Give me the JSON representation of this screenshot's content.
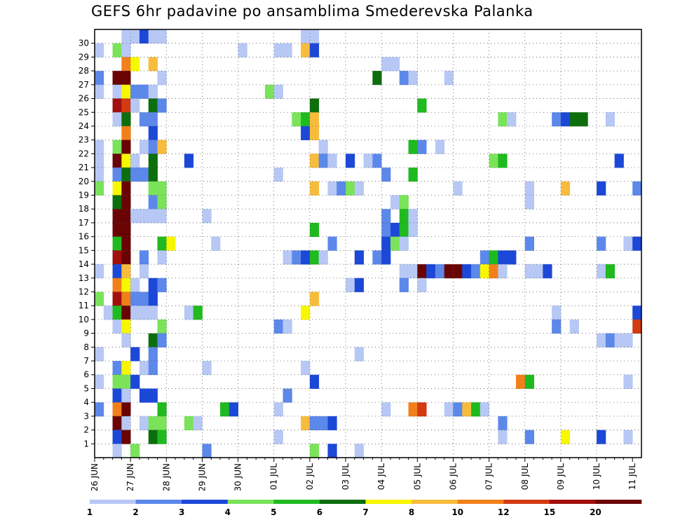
{
  "title": "GEFS 6hr padavine po ansamblima Smederevska Palanka",
  "chart_data": {
    "type": "heatmap",
    "title": "GEFS 6hr padavine po ansamblima Smederevska Palanka",
    "xlabel": "",
    "ylabel": "",
    "x_tick_labels": [
      "26 JUN",
      "27 JUN",
      "28 JUN",
      "29 JUN",
      "30 JUN",
      "01 JUL",
      "02 JUL",
      "03 JUL",
      "04 JUL",
      "05 JUL",
      "06 JUL",
      "07 JUL",
      "08 JUL",
      "09 JUL",
      "10 JUL",
      "11 JUL"
    ],
    "y_tick_labels": [
      "1",
      "2",
      "3",
      "4",
      "5",
      "6",
      "7",
      "8",
      "9",
      "10",
      "11",
      "12",
      "13",
      "14",
      "15",
      "16",
      "17",
      "18",
      "19",
      "20",
      "21",
      "22",
      "23",
      "24",
      "25",
      "26",
      "27",
      "28",
      "29",
      "30"
    ],
    "x_steps_per_day": 4,
    "x_steps_total": 61,
    "grid": true,
    "legend_placement": "bottom",
    "colorbar": {
      "labels": [
        "1",
        "2",
        "3",
        "4",
        "5",
        "6",
        "7",
        "8",
        "10",
        "12",
        "15",
        "20"
      ],
      "colors": [
        "#b7c8f5",
        "#5c88ea",
        "#1c48d8",
        "#7ae35a",
        "#1fba1f",
        "#0d6e0d",
        "#f7f700",
        "#f7bc3c",
        "#f2801a",
        "#d23a12",
        "#a10f0f",
        "#6a0404"
      ]
    },
    "cells": [
      [
        30,
        3,
        1
      ],
      [
        30,
        4,
        1
      ],
      [
        30,
        5,
        3
      ],
      [
        30,
        6,
        1
      ],
      [
        30,
        7,
        1
      ],
      [
        30,
        23,
        1
      ],
      [
        30,
        24,
        1
      ],
      [
        29,
        0,
        1
      ],
      [
        29,
        2,
        4
      ],
      [
        29,
        3,
        1
      ],
      [
        29,
        16,
        1
      ],
      [
        29,
        20,
        1
      ],
      [
        29,
        21,
        1
      ],
      [
        29,
        23,
        8
      ],
      [
        29,
        24,
        3
      ],
      [
        28,
        3,
        9
      ],
      [
        28,
        4,
        7
      ],
      [
        28,
        6,
        8
      ],
      [
        28,
        32,
        1
      ],
      [
        28,
        33,
        1
      ],
      [
        27,
        0,
        2
      ],
      [
        27,
        2,
        12
      ],
      [
        27,
        3,
        12
      ],
      [
        27,
        7,
        1
      ],
      [
        27,
        31,
        6
      ],
      [
        27,
        34,
        2
      ],
      [
        27,
        35,
        1
      ],
      [
        27,
        39,
        1
      ],
      [
        26,
        0,
        1
      ],
      [
        26,
        2,
        1
      ],
      [
        26,
        3,
        7
      ],
      [
        26,
        4,
        2
      ],
      [
        26,
        5,
        2
      ],
      [
        26,
        6,
        1
      ],
      [
        26,
        19,
        4
      ],
      [
        26,
        20,
        1
      ],
      [
        25,
        2,
        11
      ],
      [
        25,
        3,
        10
      ],
      [
        25,
        4,
        1
      ],
      [
        25,
        6,
        6
      ],
      [
        25,
        7,
        2
      ],
      [
        25,
        24,
        6
      ],
      [
        25,
        36,
        5
      ],
      [
        24,
        2,
        1
      ],
      [
        24,
        3,
        6
      ],
      [
        24,
        5,
        2
      ],
      [
        24,
        6,
        2
      ],
      [
        24,
        22,
        4
      ],
      [
        24,
        23,
        5
      ],
      [
        24,
        24,
        8
      ],
      [
        24,
        45,
        4
      ],
      [
        24,
        46,
        1
      ],
      [
        24,
        51,
        2
      ],
      [
        24,
        52,
        3
      ],
      [
        24,
        53,
        6
      ],
      [
        24,
        54,
        6
      ],
      [
        24,
        57,
        1
      ],
      [
        23,
        3,
        9
      ],
      [
        23,
        6,
        3
      ],
      [
        23,
        23,
        3
      ],
      [
        23,
        24,
        8
      ],
      [
        22,
        0,
        1
      ],
      [
        22,
        2,
        4
      ],
      [
        22,
        3,
        12
      ],
      [
        22,
        5,
        1
      ],
      [
        22,
        6,
        2
      ],
      [
        22,
        7,
        8
      ],
      [
        22,
        25,
        1
      ],
      [
        22,
        35,
        5
      ],
      [
        22,
        36,
        2
      ],
      [
        22,
        38,
        1
      ],
      [
        21,
        0,
        1
      ],
      [
        21,
        2,
        12
      ],
      [
        21,
        3,
        7
      ],
      [
        21,
        4,
        1
      ],
      [
        21,
        6,
        6
      ],
      [
        21,
        10,
        3
      ],
      [
        21,
        24,
        8
      ],
      [
        21,
        25,
        2
      ],
      [
        21,
        26,
        1
      ],
      [
        21,
        28,
        3
      ],
      [
        21,
        30,
        1
      ],
      [
        21,
        31,
        2
      ],
      [
        21,
        44,
        4
      ],
      [
        21,
        45,
        5
      ],
      [
        21,
        58,
        3
      ],
      [
        20,
        0,
        1
      ],
      [
        20,
        2,
        2
      ],
      [
        20,
        3,
        6
      ],
      [
        20,
        4,
        2
      ],
      [
        20,
        5,
        2
      ],
      [
        20,
        6,
        6
      ],
      [
        20,
        20,
        1
      ],
      [
        20,
        32,
        2
      ],
      [
        20,
        35,
        5
      ],
      [
        19,
        0,
        4
      ],
      [
        19,
        2,
        7
      ],
      [
        19,
        3,
        12
      ],
      [
        19,
        6,
        4
      ],
      [
        19,
        7,
        4
      ],
      [
        19,
        24,
        8
      ],
      [
        19,
        26,
        1
      ],
      [
        19,
        27,
        2
      ],
      [
        19,
        28,
        4
      ],
      [
        19,
        29,
        1
      ],
      [
        19,
        40,
        1
      ],
      [
        19,
        48,
        1
      ],
      [
        19,
        52,
        8
      ],
      [
        19,
        56,
        3
      ],
      [
        19,
        60,
        2
      ],
      [
        18,
        2,
        6
      ],
      [
        18,
        3,
        12
      ],
      [
        18,
        6,
        2
      ],
      [
        18,
        7,
        4
      ],
      [
        18,
        33,
        1
      ],
      [
        18,
        34,
        4
      ],
      [
        18,
        48,
        1
      ],
      [
        17,
        2,
        12
      ],
      [
        17,
        3,
        12
      ],
      [
        17,
        4,
        1
      ],
      [
        17,
        5,
        1
      ],
      [
        17,
        6,
        1
      ],
      [
        17,
        7,
        1
      ],
      [
        17,
        12,
        1
      ],
      [
        17,
        32,
        2
      ],
      [
        17,
        34,
        5
      ],
      [
        17,
        35,
        1
      ],
      [
        16,
        2,
        12
      ],
      [
        16,
        3,
        12
      ],
      [
        16,
        24,
        5
      ],
      [
        16,
        32,
        2
      ],
      [
        16,
        33,
        3
      ],
      [
        16,
        34,
        5
      ],
      [
        16,
        35,
        1
      ],
      [
        15,
        2,
        5
      ],
      [
        15,
        3,
        12
      ],
      [
        15,
        7,
        5
      ],
      [
        15,
        8,
        7
      ],
      [
        15,
        13,
        1
      ],
      [
        15,
        26,
        2
      ],
      [
        15,
        32,
        3
      ],
      [
        15,
        33,
        4
      ],
      [
        15,
        34,
        1
      ],
      [
        15,
        48,
        2
      ],
      [
        15,
        56,
        2
      ],
      [
        15,
        59,
        1
      ],
      [
        15,
        60,
        3
      ],
      [
        14,
        2,
        11
      ],
      [
        14,
        3,
        12
      ],
      [
        14,
        5,
        2
      ],
      [
        14,
        7,
        1
      ],
      [
        14,
        21,
        1
      ],
      [
        14,
        22,
        2
      ],
      [
        14,
        23,
        3
      ],
      [
        14,
        24,
        5
      ],
      [
        14,
        25,
        1
      ],
      [
        14,
        29,
        3
      ],
      [
        14,
        31,
        2
      ],
      [
        14,
        32,
        3
      ],
      [
        14,
        43,
        2
      ],
      [
        14,
        44,
        5
      ],
      [
        14,
        45,
        3
      ],
      [
        14,
        46,
        3
      ],
      [
        13,
        0,
        1
      ],
      [
        13,
        2,
        3
      ],
      [
        13,
        3,
        8
      ],
      [
        13,
        5,
        1
      ],
      [
        13,
        34,
        1
      ],
      [
        13,
        35,
        1
      ],
      [
        13,
        36,
        12
      ],
      [
        13,
        37,
        3
      ],
      [
        13,
        38,
        2
      ],
      [
        13,
        39,
        12
      ],
      [
        13,
        40,
        12
      ],
      [
        13,
        41,
        3
      ],
      [
        13,
        42,
        2
      ],
      [
        13,
        43,
        7
      ],
      [
        13,
        44,
        9
      ],
      [
        13,
        45,
        1
      ],
      [
        13,
        48,
        1
      ],
      [
        13,
        49,
        1
      ],
      [
        13,
        50,
        3
      ],
      [
        13,
        56,
        1
      ],
      [
        13,
        57,
        5
      ],
      [
        12,
        2,
        9
      ],
      [
        12,
        3,
        7
      ],
      [
        12,
        4,
        1
      ],
      [
        12,
        6,
        3
      ],
      [
        12,
        7,
        2
      ],
      [
        12,
        28,
        1
      ],
      [
        12,
        29,
        3
      ],
      [
        12,
        34,
        2
      ],
      [
        12,
        36,
        1
      ],
      [
        11,
        0,
        4
      ],
      [
        11,
        2,
        11
      ],
      [
        11,
        3,
        9
      ],
      [
        11,
        4,
        2
      ],
      [
        11,
        5,
        2
      ],
      [
        11,
        6,
        3
      ],
      [
        11,
        24,
        8
      ],
      [
        10,
        1,
        1
      ],
      [
        10,
        2,
        5
      ],
      [
        10,
        3,
        12
      ],
      [
        10,
        4,
        1
      ],
      [
        10,
        5,
        1
      ],
      [
        10,
        6,
        1
      ],
      [
        10,
        10,
        1
      ],
      [
        10,
        11,
        5
      ],
      [
        10,
        23,
        7
      ],
      [
        10,
        51,
        1
      ],
      [
        10,
        60,
        3
      ],
      [
        9,
        2,
        1
      ],
      [
        9,
        3,
        7
      ],
      [
        9,
        7,
        4
      ],
      [
        9,
        20,
        2
      ],
      [
        9,
        21,
        1
      ],
      [
        9,
        51,
        2
      ],
      [
        9,
        53,
        1
      ],
      [
        9,
        60,
        10
      ],
      [
        8,
        3,
        1
      ],
      [
        8,
        6,
        6
      ],
      [
        8,
        7,
        2
      ],
      [
        8,
        56,
        1
      ],
      [
        8,
        57,
        2
      ],
      [
        8,
        58,
        1
      ],
      [
        8,
        59,
        1
      ],
      [
        7,
        0,
        1
      ],
      [
        7,
        4,
        3
      ],
      [
        7,
        6,
        2
      ],
      [
        7,
        29,
        1
      ],
      [
        6,
        2,
        2
      ],
      [
        6,
        3,
        7
      ],
      [
        6,
        5,
        1
      ],
      [
        6,
        6,
        2
      ],
      [
        6,
        12,
        1
      ],
      [
        6,
        23,
        1
      ],
      [
        5,
        0,
        1
      ],
      [
        5,
        2,
        4
      ],
      [
        5,
        3,
        4
      ],
      [
        5,
        4,
        3
      ],
      [
        5,
        24,
        3
      ],
      [
        5,
        47,
        9
      ],
      [
        5,
        48,
        5
      ],
      [
        5,
        59,
        1
      ],
      [
        4,
        2,
        3
      ],
      [
        4,
        3,
        1
      ],
      [
        4,
        5,
        3
      ],
      [
        4,
        6,
        3
      ],
      [
        4,
        21,
        2
      ],
      [
        3,
        0,
        2
      ],
      [
        3,
        2,
        9
      ],
      [
        3,
        3,
        12
      ],
      [
        3,
        7,
        5
      ],
      [
        3,
        14,
        5
      ],
      [
        3,
        15,
        3
      ],
      [
        3,
        20,
        1
      ],
      [
        3,
        32,
        1
      ],
      [
        3,
        35,
        9
      ],
      [
        3,
        36,
        10
      ],
      [
        3,
        39,
        1
      ],
      [
        3,
        40,
        2
      ],
      [
        3,
        41,
        8
      ],
      [
        3,
        42,
        5
      ],
      [
        3,
        43,
        1
      ],
      [
        2,
        2,
        12
      ],
      [
        2,
        3,
        1
      ],
      [
        2,
        5,
        1
      ],
      [
        2,
        6,
        4
      ],
      [
        2,
        7,
        4
      ],
      [
        2,
        10,
        4
      ],
      [
        2,
        11,
        1
      ],
      [
        2,
        23,
        8
      ],
      [
        2,
        24,
        2
      ],
      [
        2,
        25,
        2
      ],
      [
        2,
        26,
        3
      ],
      [
        2,
        45,
        2
      ],
      [
        1,
        2,
        3
      ],
      [
        1,
        3,
        12
      ],
      [
        1,
        6,
        6
      ],
      [
        1,
        7,
        5
      ],
      [
        1,
        20,
        1
      ],
      [
        1,
        45,
        1
      ],
      [
        1,
        48,
        2
      ],
      [
        1,
        52,
        7
      ],
      [
        1,
        56,
        3
      ],
      [
        1,
        59,
        1
      ],
      [
        0,
        2,
        1
      ],
      [
        0,
        4,
        4
      ],
      [
        0,
        12,
        2
      ],
      [
        0,
        24,
        4
      ],
      [
        0,
        26,
        3
      ],
      [
        0,
        29,
        1
      ]
    ]
  }
}
